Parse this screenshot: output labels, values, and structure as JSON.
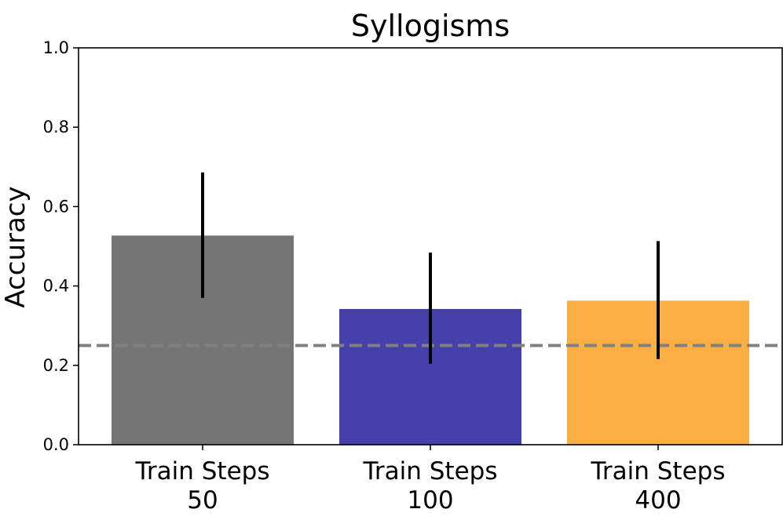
{
  "chart_data": {
    "type": "bar",
    "title": "Syllogisms",
    "xlabel": "",
    "ylabel": "Accuracy",
    "ylim": [
      0.0,
      1.0
    ],
    "yticks": [
      "0.0",
      "0.2",
      "0.4",
      "0.6",
      "0.8",
      "1.0"
    ],
    "categories": [
      [
        "Train Steps",
        "50"
      ],
      [
        "Train Steps",
        "100"
      ],
      [
        "Train Steps",
        "400"
      ]
    ],
    "values": [
      0.527,
      0.342,
      0.363
    ],
    "error_low": [
      0.37,
      0.204,
      0.216
    ],
    "error_high": [
      0.686,
      0.484,
      0.513
    ],
    "colors": [
      "#757575",
      "#4640ab",
      "#fbae43"
    ],
    "reference_line": {
      "value": 0.25,
      "style": "dashed",
      "color": "#808080"
    },
    "grid": false,
    "legend": "none"
  }
}
